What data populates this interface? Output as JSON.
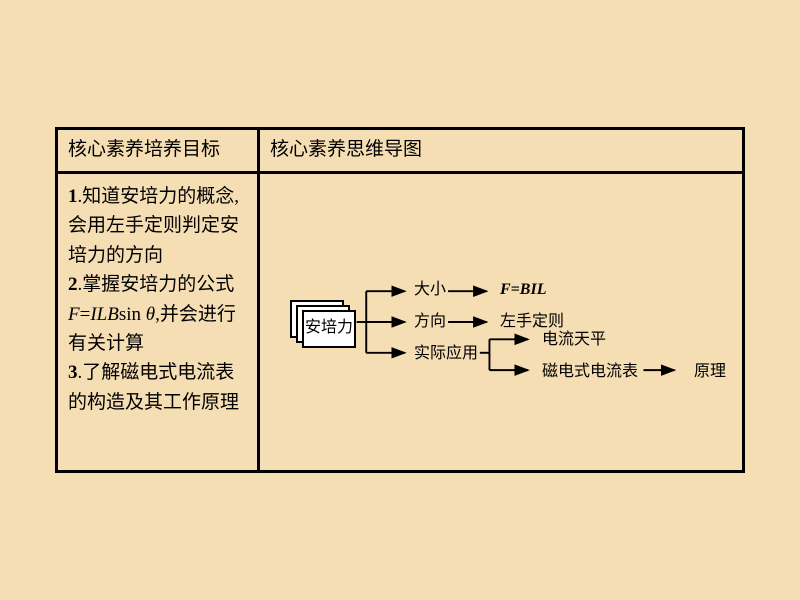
{
  "table": {
    "header_left": "核心素养培养目标",
    "header_right": "核心素养思维导图",
    "objectives_html": "<b>1</b>.知道安培力的概念,会用左手定则判定安培力的方向<br><b>2</b>.掌握安培力的公式 <span class='formula-i'>F</span>=<span class='formula-i'>ILB</span>sin <span class='formula-i'>θ</span>,并会进行有关计算<br><b>3</b>.了解磁电式电流表的构造及其工作原理"
  },
  "diagram": {
    "root": "安培力",
    "b1": "大小",
    "b1_result": "F=BIL",
    "b2": "方向",
    "b2_result": "左手定则",
    "b3": "实际应用",
    "b3_sub1": "电流天平",
    "b3_sub2": "磁电式电流表",
    "b3_sub2_result": "原理",
    "line_color": "#000000",
    "stroke_width": 2
  }
}
